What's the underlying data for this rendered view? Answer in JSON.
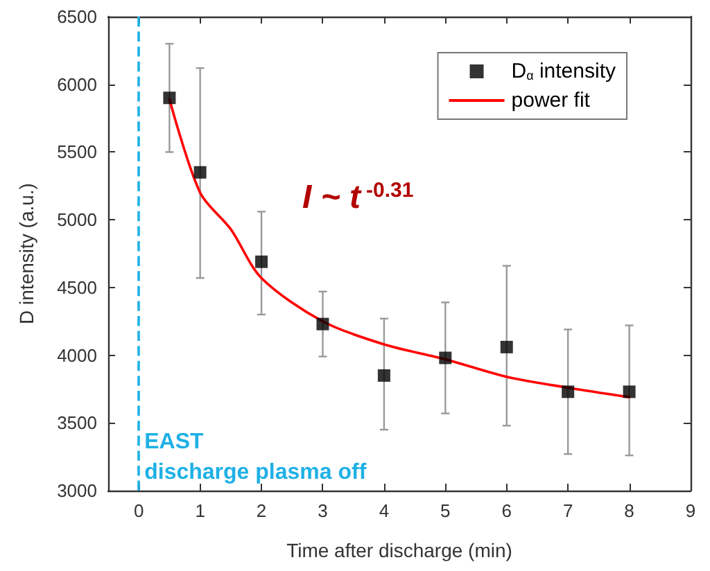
{
  "chart_data": {
    "type": "scatter",
    "xlabel": "Time after discharge (min)",
    "ylabel": "D intensity (a.u.)",
    "series": [
      {
        "name": "D$_{α}$ intensity",
        "color": "#000000",
        "marker": "square",
        "x": [
          0.5,
          1,
          2,
          3,
          4,
          5,
          6,
          7,
          8
        ],
        "values": [
          5900,
          5350,
          4690,
          4230,
          3850,
          3980,
          4060,
          3730,
          3730
        ],
        "errors": [
          [
            5500,
            6300
          ],
          [
            4570,
            6120
          ],
          [
            4300,
            5060
          ],
          [
            3990,
            4470
          ],
          [
            3450,
            4270
          ],
          [
            3570,
            4390
          ],
          [
            3480,
            4660
          ],
          [
            3270,
            4190
          ],
          [
            3260,
            4220
          ]
        ]
      },
      {
        "name": "power fit",
        "type": "line",
        "color": "#ff0000",
        "marker": "none",
        "line_style": "solid",
        "x": [
          0.5,
          1,
          1.5,
          2,
          3,
          4,
          5,
          6,
          7,
          8
        ],
        "values": [
          5890,
          5200,
          4930,
          4570,
          4250,
          4080,
          3970,
          3840,
          3760,
          3690
        ]
      }
    ],
    "xlim": [
      -0.5,
      9
    ],
    "xticks": [
      0,
      1,
      2,
      3,
      4,
      5,
      6,
      7,
      8,
      9
    ],
    "ylim": [
      3000,
      6500
    ],
    "yticks": [
      3000,
      3500,
      4000,
      4500,
      5000,
      5500,
      6000,
      6500
    ],
    "ref_lines": [
      {
        "axis": "x",
        "value": 0,
        "label": "EAST\ndischarge plasma off",
        "color": "#1fb1e6",
        "line_style": "dashed"
      }
    ],
    "annotations": [
      "I ~ t$^{-0.31}$"
    ],
    "grid": false,
    "legend": "top right"
  }
}
